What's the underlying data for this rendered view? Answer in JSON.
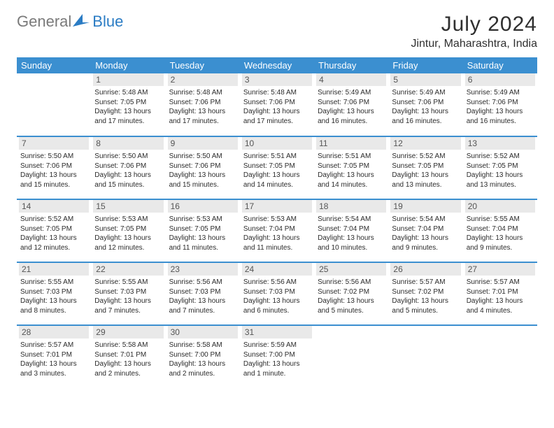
{
  "logo": {
    "text_gray": "General",
    "text_blue": "Blue"
  },
  "title": "July 2024",
  "location": "Jintur, Maharashtra, India",
  "colors": {
    "header_bg": "#3b8fd0",
    "daynum_bg": "#e9e9e9",
    "border": "#3b8fd0"
  },
  "day_headers": [
    "Sunday",
    "Monday",
    "Tuesday",
    "Wednesday",
    "Thursday",
    "Friday",
    "Saturday"
  ],
  "weeks": [
    [
      null,
      {
        "d": "1",
        "sr": "5:48 AM",
        "ss": "7:05 PM",
        "dl": "13 hours and 17 minutes."
      },
      {
        "d": "2",
        "sr": "5:48 AM",
        "ss": "7:06 PM",
        "dl": "13 hours and 17 minutes."
      },
      {
        "d": "3",
        "sr": "5:48 AM",
        "ss": "7:06 PM",
        "dl": "13 hours and 17 minutes."
      },
      {
        "d": "4",
        "sr": "5:49 AM",
        "ss": "7:06 PM",
        "dl": "13 hours and 16 minutes."
      },
      {
        "d": "5",
        "sr": "5:49 AM",
        "ss": "7:06 PM",
        "dl": "13 hours and 16 minutes."
      },
      {
        "d": "6",
        "sr": "5:49 AM",
        "ss": "7:06 PM",
        "dl": "13 hours and 16 minutes."
      }
    ],
    [
      {
        "d": "7",
        "sr": "5:50 AM",
        "ss": "7:06 PM",
        "dl": "13 hours and 15 minutes."
      },
      {
        "d": "8",
        "sr": "5:50 AM",
        "ss": "7:06 PM",
        "dl": "13 hours and 15 minutes."
      },
      {
        "d": "9",
        "sr": "5:50 AM",
        "ss": "7:06 PM",
        "dl": "13 hours and 15 minutes."
      },
      {
        "d": "10",
        "sr": "5:51 AM",
        "ss": "7:05 PM",
        "dl": "13 hours and 14 minutes."
      },
      {
        "d": "11",
        "sr": "5:51 AM",
        "ss": "7:05 PM",
        "dl": "13 hours and 14 minutes."
      },
      {
        "d": "12",
        "sr": "5:52 AM",
        "ss": "7:05 PM",
        "dl": "13 hours and 13 minutes."
      },
      {
        "d": "13",
        "sr": "5:52 AM",
        "ss": "7:05 PM",
        "dl": "13 hours and 13 minutes."
      }
    ],
    [
      {
        "d": "14",
        "sr": "5:52 AM",
        "ss": "7:05 PM",
        "dl": "13 hours and 12 minutes."
      },
      {
        "d": "15",
        "sr": "5:53 AM",
        "ss": "7:05 PM",
        "dl": "13 hours and 12 minutes."
      },
      {
        "d": "16",
        "sr": "5:53 AM",
        "ss": "7:05 PM",
        "dl": "13 hours and 11 minutes."
      },
      {
        "d": "17",
        "sr": "5:53 AM",
        "ss": "7:04 PM",
        "dl": "13 hours and 11 minutes."
      },
      {
        "d": "18",
        "sr": "5:54 AM",
        "ss": "7:04 PM",
        "dl": "13 hours and 10 minutes."
      },
      {
        "d": "19",
        "sr": "5:54 AM",
        "ss": "7:04 PM",
        "dl": "13 hours and 9 minutes."
      },
      {
        "d": "20",
        "sr": "5:55 AM",
        "ss": "7:04 PM",
        "dl": "13 hours and 9 minutes."
      }
    ],
    [
      {
        "d": "21",
        "sr": "5:55 AM",
        "ss": "7:03 PM",
        "dl": "13 hours and 8 minutes."
      },
      {
        "d": "22",
        "sr": "5:55 AM",
        "ss": "7:03 PM",
        "dl": "13 hours and 7 minutes."
      },
      {
        "d": "23",
        "sr": "5:56 AM",
        "ss": "7:03 PM",
        "dl": "13 hours and 7 minutes."
      },
      {
        "d": "24",
        "sr": "5:56 AM",
        "ss": "7:03 PM",
        "dl": "13 hours and 6 minutes."
      },
      {
        "d": "25",
        "sr": "5:56 AM",
        "ss": "7:02 PM",
        "dl": "13 hours and 5 minutes."
      },
      {
        "d": "26",
        "sr": "5:57 AM",
        "ss": "7:02 PM",
        "dl": "13 hours and 5 minutes."
      },
      {
        "d": "27",
        "sr": "5:57 AM",
        "ss": "7:01 PM",
        "dl": "13 hours and 4 minutes."
      }
    ],
    [
      {
        "d": "28",
        "sr": "5:57 AM",
        "ss": "7:01 PM",
        "dl": "13 hours and 3 minutes."
      },
      {
        "d": "29",
        "sr": "5:58 AM",
        "ss": "7:01 PM",
        "dl": "13 hours and 2 minutes."
      },
      {
        "d": "30",
        "sr": "5:58 AM",
        "ss": "7:00 PM",
        "dl": "13 hours and 2 minutes."
      },
      {
        "d": "31",
        "sr": "5:59 AM",
        "ss": "7:00 PM",
        "dl": "13 hours and 1 minute."
      },
      null,
      null,
      null
    ]
  ],
  "labels": {
    "sunrise": "Sunrise: ",
    "sunset": "Sunset: ",
    "daylight": "Daylight: "
  }
}
